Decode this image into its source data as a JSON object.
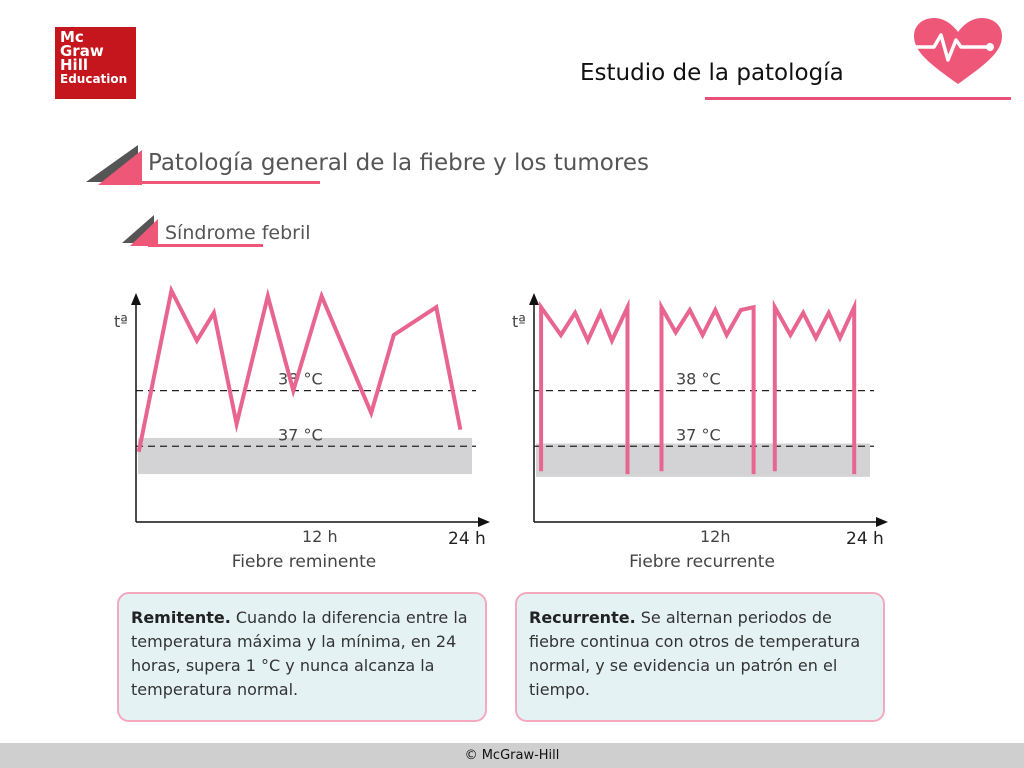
{
  "logo": {
    "line1": "Mc",
    "line2": "Graw",
    "line3": "Hill",
    "line4": "Education"
  },
  "header": {
    "title": "Estudio de la patología"
  },
  "section": {
    "title": "Patología general de la fiebre y los tumores",
    "subtitle": "Síndrome febril"
  },
  "colors": {
    "accent": "#e8507a",
    "line": "#e86590",
    "band": "#d3d3d5",
    "box_bg": "#e4f2f4",
    "box_border": "#f4a9bf"
  },
  "chart_data": [
    {
      "type": "line",
      "title": "Fiebre reminente",
      "ylabel": "tª",
      "x_ticks": [
        "12 h",
        "24 h"
      ],
      "xlim": [
        0,
        24
      ],
      "ylim": [
        35.8,
        39.9
      ],
      "reference_lines": [
        {
          "label": "38 °C",
          "value": 38
        },
        {
          "label": "37 °C",
          "value": 37
        }
      ],
      "normal_band": [
        36.5,
        37.15
      ],
      "series": [
        {
          "x": [
            0.2,
            2.5,
            4.3,
            5.5,
            7.1,
            9.3,
            11.1,
            13.1,
            16.6,
            18.2,
            21.2,
            22.9
          ],
          "y": [
            36.9,
            39.8,
            38.9,
            39.4,
            37.4,
            39.7,
            38.0,
            39.7,
            37.6,
            39.0,
            39.5,
            37.3
          ]
        }
      ]
    },
    {
      "type": "line",
      "title": "Fiebre recurrente",
      "ylabel": "tª",
      "x_ticks": [
        "12h",
        "24 h"
      ],
      "xlim": [
        0,
        24
      ],
      "ylim": [
        35.8,
        39.9
      ],
      "reference_lines": [
        {
          "label": "38 °C",
          "value": 38
        },
        {
          "label": "37 °C",
          "value": 37
        }
      ],
      "normal_band": [
        36.45,
        37.05
      ],
      "series": [
        {
          "x": [
            0.5,
            0.5,
            1.9,
            2.9,
            3.8,
            4.7,
            5.5,
            6.6,
            6.6
          ],
          "y": [
            36.55,
            39.5,
            39.0,
            39.4,
            38.9,
            39.4,
            38.9,
            39.5,
            36.5
          ]
        },
        {
          "x": [
            9.0,
            9.0,
            10.0,
            11.0,
            11.9,
            12.8,
            13.6,
            14.6,
            15.5,
            15.5
          ],
          "y": [
            36.55,
            39.5,
            39.05,
            39.45,
            39.0,
            39.45,
            39.0,
            39.45,
            39.5,
            36.5
          ]
        },
        {
          "x": [
            17.0,
            17.0,
            18.1,
            19.0,
            19.9,
            20.8,
            21.6,
            22.6,
            22.6
          ],
          "y": [
            36.55,
            39.5,
            39.0,
            39.4,
            38.95,
            39.4,
            38.95,
            39.5,
            36.5
          ]
        }
      ]
    }
  ],
  "boxes": [
    {
      "bold": "Remitente.",
      "text": " Cuando la diferencia entre la temperatura máxima y la mínima, en 24 horas, supera 1 °C y nunca alcanza la temperatura normal."
    },
    {
      "bold": "Recurrente.",
      "text": " Se alternan periodos de fiebre continua con otros de temperatura normal, y se evidencia un patrón en el tiempo."
    }
  ],
  "footer": {
    "text": "© McGraw-Hill"
  }
}
